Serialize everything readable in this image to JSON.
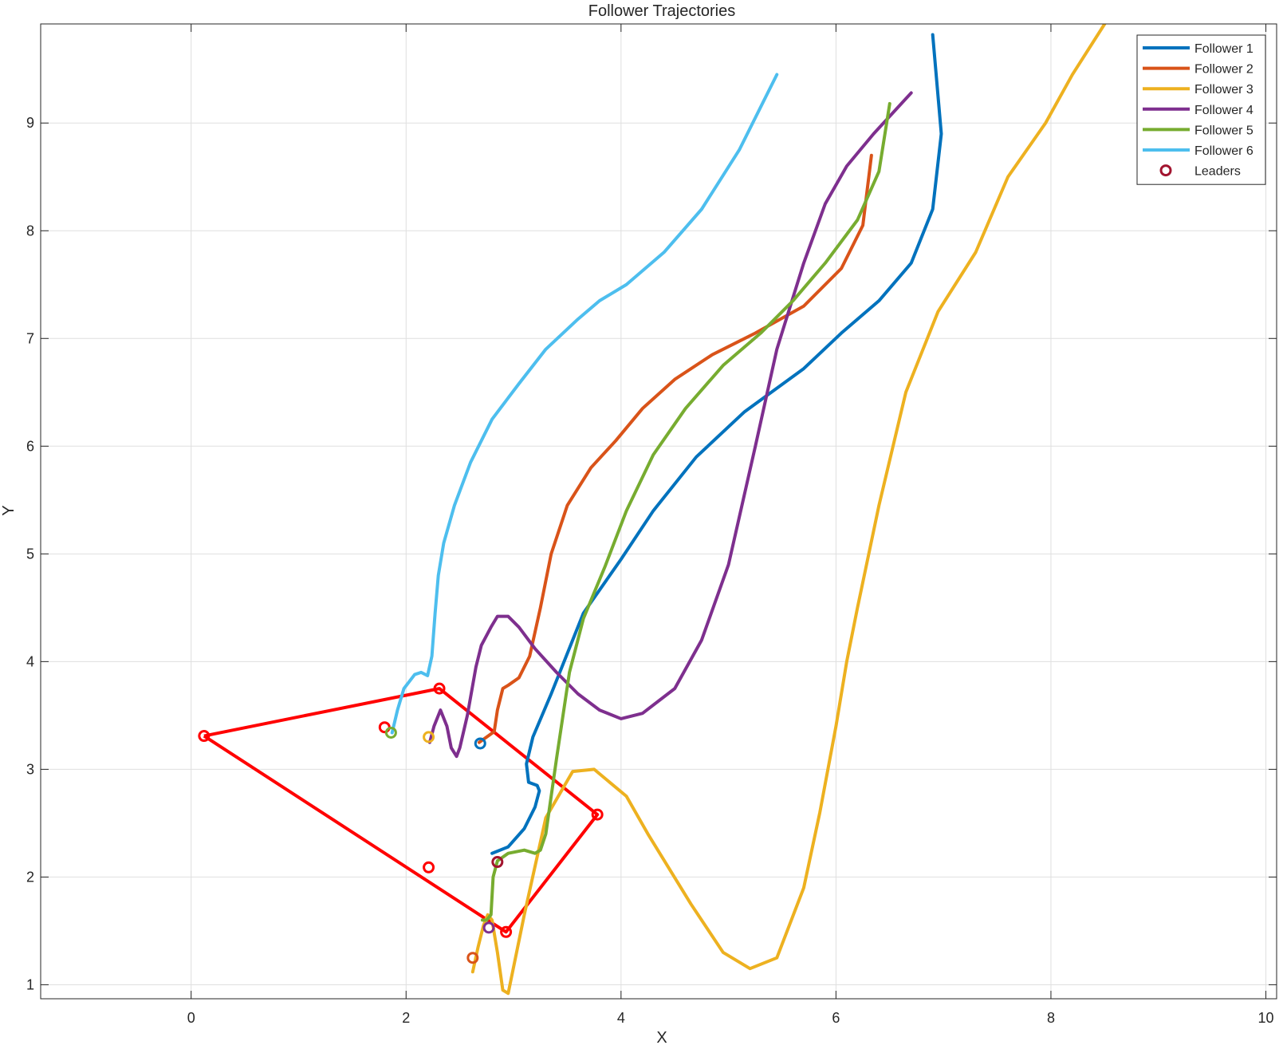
{
  "chart_data": {
    "type": "line",
    "title": "Follower Trajectories",
    "xlabel": "X",
    "ylabel": "Y",
    "xlim": [
      -1.4,
      10.1
    ],
    "ylim": [
      0.87,
      9.92
    ],
    "xticks": [
      0,
      2,
      4,
      6,
      8,
      10
    ],
    "yticks": [
      1,
      2,
      3,
      4,
      5,
      6,
      7,
      8,
      9
    ],
    "xtick_labels": [
      "0",
      "2",
      "4",
      "6",
      "8",
      "10"
    ],
    "ytick_labels": [
      "1",
      "2",
      "3",
      "4",
      "5",
      "6",
      "7",
      "8",
      "9"
    ],
    "grid": true,
    "legend_position": "top-right",
    "series": [
      {
        "name": "Follower 1",
        "color": "#0072BD",
        "x": [
          2.8,
          2.95,
          3.1,
          3.2,
          3.24,
          3.22,
          3.14,
          3.12,
          3.18,
          3.35,
          3.65,
          4.0,
          4.3,
          4.7,
          5.15,
          5.7,
          6.05,
          6.4,
          6.7,
          6.9,
          6.98,
          6.9
        ],
        "y": [
          2.22,
          2.28,
          2.45,
          2.65,
          2.8,
          2.85,
          2.88,
          3.05,
          3.3,
          3.7,
          4.45,
          4.95,
          5.4,
          5.9,
          6.32,
          6.72,
          7.05,
          7.35,
          7.7,
          8.2,
          8.9,
          9.82
        ]
      },
      {
        "name": "Follower 2",
        "color": "#D95319",
        "x": [
          2.68,
          2.75,
          2.82,
          2.85,
          2.9,
          2.95,
          3.05,
          3.15,
          3.25,
          3.35,
          3.5,
          3.72,
          3.95,
          4.2,
          4.5,
          4.85,
          5.25,
          5.7,
          6.05,
          6.25,
          6.33
        ],
        "y": [
          3.25,
          3.3,
          3.35,
          3.55,
          3.75,
          3.78,
          3.85,
          4.05,
          4.5,
          5.0,
          5.45,
          5.8,
          6.05,
          6.35,
          6.62,
          6.85,
          7.05,
          7.3,
          7.65,
          8.05,
          8.7
        ]
      },
      {
        "name": "Follower 3",
        "color": "#EDB120",
        "x": [
          2.62,
          2.67,
          2.72,
          2.76,
          2.8,
          2.85,
          2.9,
          2.95,
          3.1,
          3.3,
          3.55,
          3.75,
          4.05,
          4.25,
          4.65,
          4.95,
          5.2,
          5.45,
          5.7,
          5.85,
          6.0,
          6.1,
          6.2,
          6.4,
          6.65,
          6.95,
          7.3,
          7.6,
          7.95,
          8.2,
          8.5
        ],
        "y": [
          1.12,
          1.35,
          1.55,
          1.65,
          1.6,
          1.3,
          0.95,
          0.92,
          1.65,
          2.55,
          2.98,
          3.0,
          2.75,
          2.4,
          1.75,
          1.3,
          1.15,
          1.25,
          1.9,
          2.6,
          3.4,
          4.0,
          4.5,
          5.45,
          6.5,
          7.25,
          7.8,
          8.5,
          9.0,
          9.45,
          9.92
        ]
      },
      {
        "name": "Follower 4",
        "color": "#7E2F8E",
        "x": [
          2.22,
          2.26,
          2.32,
          2.38,
          2.42,
          2.47,
          2.5,
          2.57,
          2.65,
          2.7,
          2.79,
          2.85,
          2.95,
          3.05,
          3.2,
          3.4,
          3.6,
          3.8,
          4.0,
          4.2,
          4.5,
          4.75,
          5.0,
          5.25,
          5.45,
          5.7,
          5.9,
          6.1,
          6.35,
          6.7
        ],
        "y": [
          3.25,
          3.4,
          3.55,
          3.4,
          3.2,
          3.12,
          3.2,
          3.5,
          3.95,
          4.15,
          4.32,
          4.42,
          4.42,
          4.32,
          4.12,
          3.9,
          3.7,
          3.55,
          3.47,
          3.52,
          3.75,
          4.2,
          4.9,
          6.0,
          6.9,
          7.7,
          8.25,
          8.6,
          8.9,
          9.28
        ]
      },
      {
        "name": "Follower 5",
        "color": "#77AC30",
        "x": [
          2.71,
          2.75,
          2.79,
          2.81,
          2.85,
          2.95,
          3.1,
          3.2,
          3.25,
          3.3,
          3.4,
          3.52,
          3.65,
          3.85,
          4.05,
          4.3,
          4.6,
          4.95,
          5.3,
          5.6,
          5.9,
          6.2,
          6.4,
          6.5
        ],
        "y": [
          1.6,
          1.6,
          1.65,
          2.0,
          2.15,
          2.22,
          2.25,
          2.22,
          2.25,
          2.4,
          3.1,
          3.9,
          4.4,
          4.88,
          5.4,
          5.92,
          6.35,
          6.75,
          7.05,
          7.35,
          7.7,
          8.1,
          8.55,
          9.18
        ]
      },
      {
        "name": "Follower 6",
        "color": "#4DBEEE",
        "x": [
          1.87,
          1.92,
          1.98,
          2.08,
          2.14,
          2.2,
          2.24,
          2.27,
          2.3,
          2.35,
          2.45,
          2.6,
          2.8,
          3.05,
          3.3,
          3.6,
          3.8,
          4.05,
          4.4,
          4.75,
          5.1,
          5.45
        ],
        "y": [
          3.34,
          3.55,
          3.75,
          3.88,
          3.9,
          3.87,
          4.05,
          4.45,
          4.8,
          5.1,
          5.45,
          5.85,
          6.25,
          6.58,
          6.9,
          7.18,
          7.35,
          7.5,
          7.8,
          8.2,
          8.75,
          9.45
        ]
      }
    ],
    "leaders_polygon": {
      "color": "#FF0000",
      "x": [
        0.12,
        2.31,
        3.78,
        2.93,
        0.12
      ],
      "y": [
        3.31,
        3.75,
        2.58,
        1.49,
        3.31
      ]
    },
    "leader_points": {
      "name": "Leaders",
      "marker_color": "#A2142F",
      "points": [
        {
          "x": 0.12,
          "y": 3.31,
          "color": "#FF0000"
        },
        {
          "x": 2.31,
          "y": 3.75,
          "color": "#FF0000"
        },
        {
          "x": 3.78,
          "y": 2.58,
          "color": "#FF0000"
        },
        {
          "x": 2.93,
          "y": 1.49,
          "color": "#FF0000"
        },
        {
          "x": 1.8,
          "y": 3.39,
          "color": "#FF0000"
        },
        {
          "x": 2.21,
          "y": 2.09,
          "color": "#FF0000"
        },
        {
          "x": 2.21,
          "y": 3.3,
          "color": "#EDB120"
        },
        {
          "x": 2.69,
          "y": 3.24,
          "color": "#0072BD"
        },
        {
          "x": 1.86,
          "y": 3.34,
          "color": "#77AC30"
        },
        {
          "x": 2.85,
          "y": 2.14,
          "color": "#A2142F"
        },
        {
          "x": 2.77,
          "y": 1.53,
          "color": "#7E2F8E"
        },
        {
          "x": 2.62,
          "y": 1.25,
          "color": "#D95319"
        }
      ]
    }
  }
}
